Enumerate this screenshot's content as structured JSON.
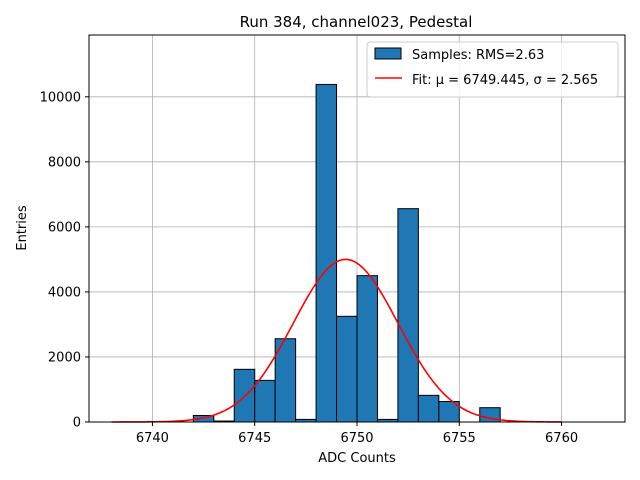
{
  "chart_data": {
    "type": "bar",
    "title": "Run 384, channel023, Pedestal",
    "xlabel": "ADC Counts",
    "ylabel": "Entries",
    "xlim": [
      6736.9,
      6763.1
    ],
    "ylim": [
      0,
      11900
    ],
    "xticks": [
      6740,
      6745,
      6750,
      6755,
      6760
    ],
    "yticks": [
      0,
      2000,
      4000,
      6000,
      8000,
      10000
    ],
    "grid": true,
    "legend_position": "top-right",
    "bin_width": 1,
    "bin_starts": [
      6742,
      6743,
      6744,
      6745,
      6746,
      6747,
      6748,
      6749,
      6750,
      6751,
      6752,
      6753,
      6754,
      6755,
      6756
    ],
    "values": [
      200,
      30,
      1620,
      1280,
      2560,
      80,
      10380,
      3250,
      4500,
      80,
      6560,
      820,
      630,
      0,
      440
    ],
    "series": [
      {
        "name": "Samples: RMS=2.63",
        "kind": "histogram",
        "color": "#1f77b4"
      },
      {
        "name": "Fit: μ = 6749.445, σ = 2.565",
        "kind": "gaussian",
        "color": "#ff0000",
        "mu": 6749.445,
        "sigma": 2.565,
        "amplitude": 5000,
        "x_range": [
          6738,
          6760
        ]
      }
    ]
  }
}
